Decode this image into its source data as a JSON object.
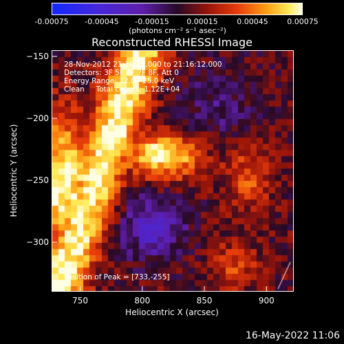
{
  "colorbar": {
    "tick_labels": [
      "-0.00075",
      "-0.00045",
      "-0.00015",
      "0.00015",
      "0.00045",
      "0.00075"
    ],
    "units": "(photons cm⁻² s⁻¹ asec⁻²)",
    "range": [
      -0.00075,
      0.00075
    ]
  },
  "chart_data": {
    "type": "heatmap",
    "title": "Reconstructed RHESSI Image",
    "xlabel": "Heliocentric X (arcsec)",
    "ylabel": "Heliocentric Y (arcsec)",
    "xlim": [
      727,
      922
    ],
    "ylim": [
      -340,
      -145
    ],
    "xticks": [
      750,
      800,
      850,
      900
    ],
    "yticks": [
      -150,
      -200,
      -250,
      -300
    ],
    "annotations": {
      "time": "28-Nov-2012 21:10:12.000 to 21:16:12.000",
      "detectors": "Detectors: 3F 5F 6F 7F 8F, Att 0",
      "energy": "Energy Range: 12.0 - 25.0 keV",
      "clean": "Clean     Total counts: 1.12E+04",
      "peak": "Position of Peak = [733,-255]"
    },
    "peak_position": [
      733,
      -255
    ]
  },
  "footer": {
    "date": "16-May-2022 11:06"
  }
}
